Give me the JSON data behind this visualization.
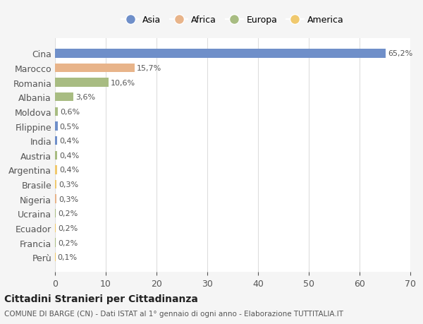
{
  "countries": [
    "Cina",
    "Marocco",
    "Romania",
    "Albania",
    "Moldova",
    "Filippine",
    "India",
    "Austria",
    "Argentina",
    "Brasile",
    "Nigeria",
    "Ucraina",
    "Ecuador",
    "Francia",
    "Perù"
  ],
  "values": [
    65.2,
    15.7,
    10.6,
    3.6,
    0.6,
    0.5,
    0.4,
    0.4,
    0.4,
    0.3,
    0.3,
    0.2,
    0.2,
    0.2,
    0.1
  ],
  "labels": [
    "65,2%",
    "15,7%",
    "10,6%",
    "3,6%",
    "0,6%",
    "0,5%",
    "0,4%",
    "0,4%",
    "0,4%",
    "0,3%",
    "0,3%",
    "0,2%",
    "0,2%",
    "0,2%",
    "0,1%"
  ],
  "colors": [
    "#6f8fc9",
    "#e8b48a",
    "#a8bc82",
    "#a8bc82",
    "#a8bc82",
    "#6f8fc9",
    "#6f8fc9",
    "#a8bc82",
    "#f0c96e",
    "#f0c96e",
    "#e8b48a",
    "#a8bc82",
    "#f0c96e",
    "#a8bc82",
    "#f0c96e"
  ],
  "legend_labels": [
    "Asia",
    "Africa",
    "Europa",
    "America"
  ],
  "legend_colors": [
    "#6f8fc9",
    "#e8b48a",
    "#a8bc82",
    "#f0c96e"
  ],
  "title": "Cittadini Stranieri per Cittadinanza",
  "subtitle": "COMUNE DI BARGE (CN) - Dati ISTAT al 1° gennaio di ogni anno - Elaborazione TUTTITALIA.IT",
  "xlim": [
    0,
    70
  ],
  "xticks": [
    0,
    10,
    20,
    30,
    40,
    50,
    60,
    70
  ],
  "background_color": "#f5f5f5",
  "bar_background": "#ffffff"
}
